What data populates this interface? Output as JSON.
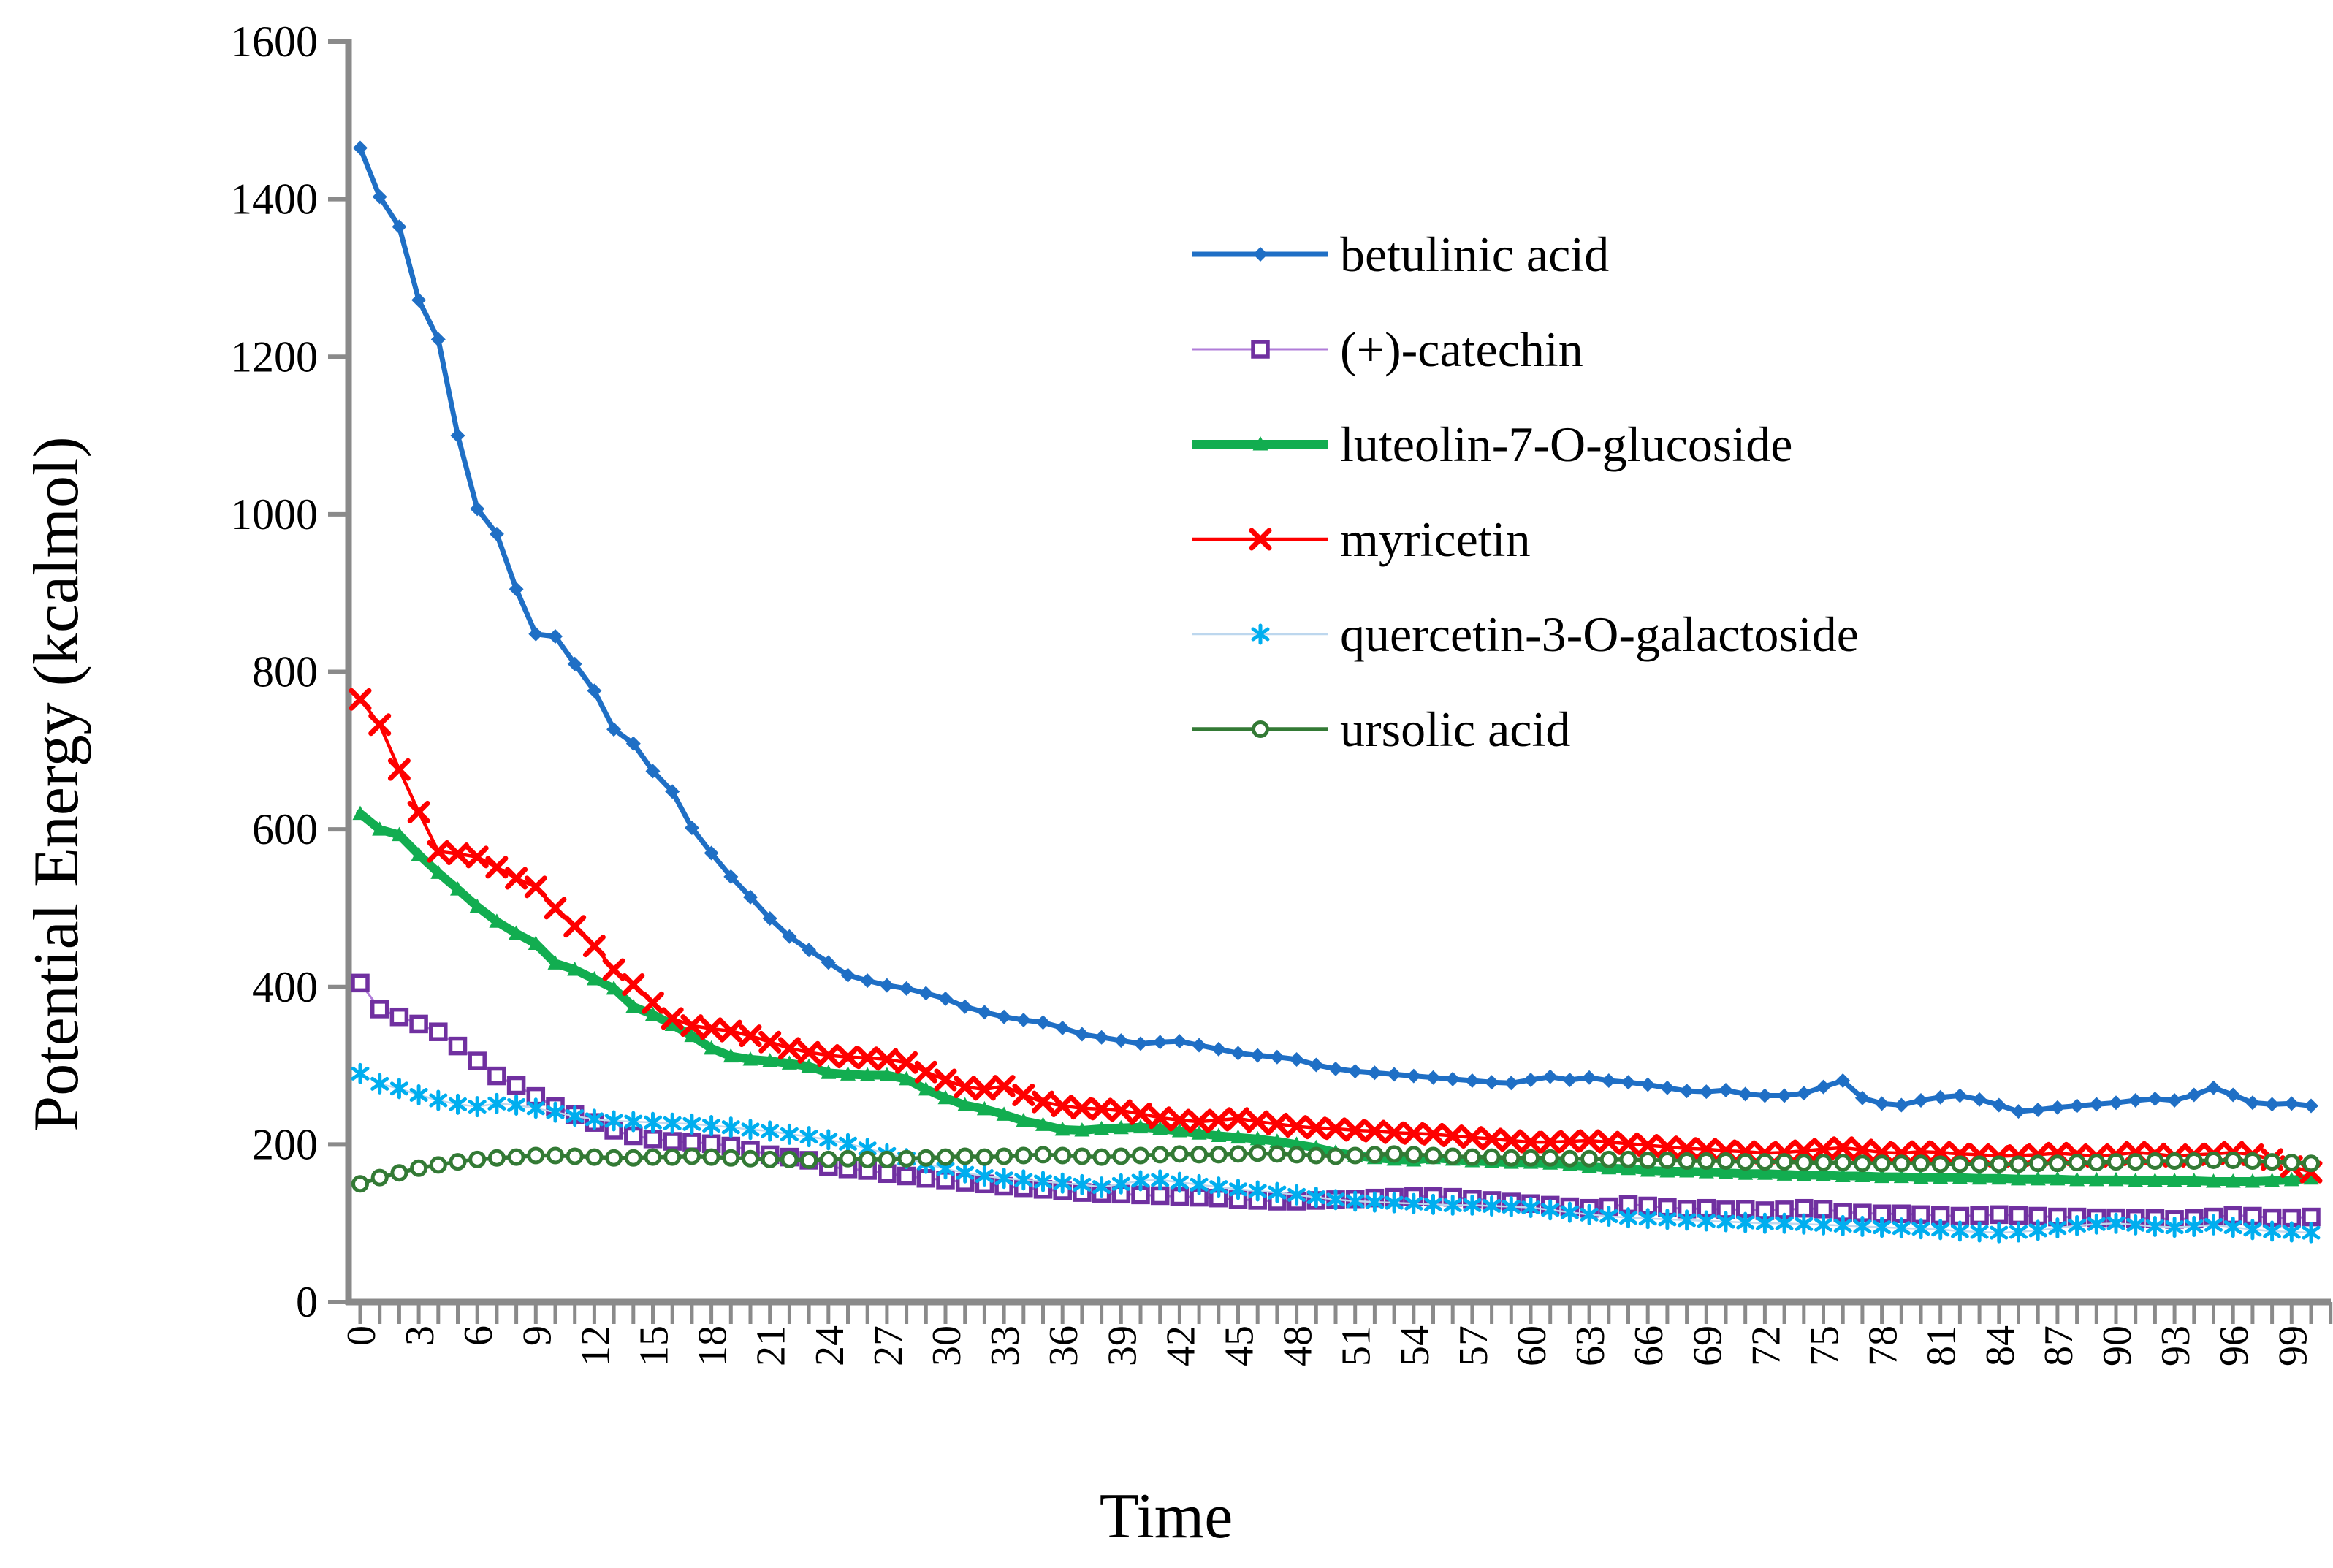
{
  "figure": {
    "xlabel": "Time",
    "ylabel": "Potential Energy (kcalmol)",
    "axis_color": "#8A8A8A",
    "text_color": "#000000",
    "background": "#FFFFFF",
    "yticks": [
      0,
      200,
      400,
      600,
      800,
      1000,
      1200,
      1400,
      1600
    ],
    "xtick_labels": [
      0,
      3,
      6,
      9,
      12,
      15,
      18,
      21,
      24,
      27,
      30,
      33,
      36,
      39,
      42,
      45,
      48,
      51,
      54,
      57,
      60,
      63,
      66,
      69,
      72,
      75,
      78,
      81,
      84,
      87,
      90,
      93,
      96,
      99
    ],
    "legend_position": "upper-right-inside",
    "grid": false
  },
  "chart_data": {
    "type": "line",
    "title": "",
    "xlabel": "Time",
    "ylabel": "Potential Energy (kcalmol)",
    "xlim": [
      0,
      101
    ],
    "ylim": [
      0,
      1600
    ],
    "x_step": 1,
    "series": [
      {
        "name": "betulinic acid",
        "line_color": "#1F6FC5",
        "marker_color": "#1F6FC5",
        "marker": "diamond",
        "line_width": 7,
        "values": [
          1465,
          1403,
          1365,
          1272,
          1222,
          1100,
          1007,
          975,
          905,
          848,
          845,
          810,
          776,
          727,
          709,
          674,
          648,
          602,
          570,
          540,
          514,
          487,
          464,
          447,
          431,
          415,
          408,
          402,
          398,
          392,
          385,
          375,
          368,
          362,
          358,
          355,
          348,
          340,
          336,
          332,
          328,
          330,
          331,
          326,
          321,
          316,
          313,
          311,
          308,
          301,
          296,
          293,
          291,
          289,
          287,
          285,
          283,
          281,
          279,
          278,
          282,
          286,
          282,
          285,
          281,
          279,
          276,
          272,
          268,
          267,
          269,
          264,
          262,
          262,
          265,
          273,
          281,
          259,
          252,
          250,
          256,
          260,
          262,
          257,
          250,
          242,
          244,
          247,
          249,
          251,
          253,
          256,
          258,
          256,
          263,
          272,
          263,
          253,
          251,
          252,
          249
        ]
      },
      {
        "name": "(+)-catechin",
        "line_color": "#B07CD8",
        "marker_color": "#7030A0",
        "marker": "open-square",
        "line_width": 3,
        "values": [
          405,
          372,
          362,
          353,
          343,
          325,
          306,
          287,
          275,
          261,
          248,
          238,
          228,
          218,
          211,
          207,
          204,
          203,
          201,
          198,
          193,
          187,
          184,
          180,
          172,
          169,
          167,
          163,
          160,
          157,
          155,
          152,
          150,
          147,
          145,
          143,
          141,
          139,
          138,
          137,
          136,
          135,
          134,
          133,
          132,
          130,
          129,
          128,
          128,
          129,
          130,
          131,
          132,
          133,
          134,
          134,
          133,
          131,
          129,
          127,
          125,
          123,
          121,
          119,
          121,
          124,
          122,
          120,
          118,
          119,
          117,
          118,
          116,
          117,
          119,
          118,
          114,
          113,
          112,
          112,
          111,
          110,
          109,
          110,
          111,
          110,
          109,
          108,
          108,
          107,
          107,
          106,
          106,
          105,
          106,
          108,
          110,
          109,
          107,
          107,
          108
        ]
      },
      {
        "name": "luteolin-7-O-glucoside",
        "line_color": "#12AD50",
        "marker_color": "#12AD50",
        "marker": "triangle",
        "line_width": 12,
        "values": [
          620,
          600,
          593,
          568,
          545,
          524,
          502,
          483,
          468,
          455,
          430,
          422,
          410,
          398,
          375,
          365,
          352,
          338,
          322,
          312,
          308,
          306,
          303,
          299,
          291,
          289,
          288,
          288,
          283,
          270,
          259,
          250,
          245,
          238,
          230,
          225,
          219,
          218,
          220,
          221,
          222,
          220,
          217,
          214,
          211,
          209,
          207,
          204,
          200,
          196,
          190,
          186,
          183,
          181,
          180,
          183,
          181,
          179,
          178,
          177,
          177,
          176,
          174,
          172,
          170,
          169,
          167,
          166,
          166,
          165,
          164,
          163,
          163,
          162,
          161,
          161,
          160,
          160,
          159,
          159,
          158,
          158,
          158,
          157,
          157,
          156,
          156,
          156,
          155,
          155,
          155,
          154,
          154,
          154,
          154,
          153,
          153,
          153,
          154,
          155,
          157
        ]
      },
      {
        "name": "myricetin",
        "line_color": "#FE0000",
        "marker_color": "#FE0000",
        "marker": "x",
        "line_width": 4.5,
        "values": [
          765,
          733,
          676,
          622,
          572,
          569,
          565,
          552,
          538,
          527,
          500,
          477,
          452,
          422,
          403,
          380,
          360,
          351,
          347,
          344,
          338,
          330,
          322,
          317,
          313,
          311,
          310,
          308,
          304,
          292,
          282,
          273,
          270,
          274,
          263,
          254,
          249,
          246,
          245,
          243,
          239,
          234,
          231,
          229,
          231,
          233,
          229,
          226,
          223,
          221,
          220,
          218,
          217,
          215,
          214,
          213,
          211,
          209,
          207,
          205,
          203,
          203,
          204,
          205,
          203,
          201,
          199,
          197,
          195,
          194,
          192,
          191,
          189,
          190,
          192,
          194,
          196,
          193,
          190,
          189,
          191,
          190,
          188,
          187,
          185,
          186,
          187,
          189,
          187,
          185,
          187,
          190,
          188,
          185,
          187,
          188,
          190,
          187,
          181,
          172,
          165
        ]
      },
      {
        "name": "quercetin-3-O-galactoside",
        "line_color": "#BDD7EE",
        "marker_color": "#00AEEF",
        "marker": "star",
        "line_width": 2.5,
        "values": [
          290,
          277,
          271,
          263,
          256,
          251,
          248,
          252,
          250,
          246,
          241,
          236,
          232,
          230,
          229,
          228,
          227,
          226,
          224,
          222,
          219,
          217,
          213,
          210,
          206,
          201,
          195,
          188,
          182,
          176,
          169,
          164,
          160,
          157,
          155,
          153,
          151,
          149,
          146,
          150,
          154,
          155,
          152,
          149,
          146,
          143,
          141,
          139,
          136,
          133,
          130,
          128,
          127,
          126,
          125,
          124,
          123,
          123,
          122,
          121,
          120,
          117,
          114,
          111,
          109,
          107,
          106,
          105,
          104,
          103,
          102,
          101,
          100,
          100,
          99,
          98,
          97,
          96,
          95,
          94,
          93,
          92,
          90,
          89,
          88,
          89,
          91,
          94,
          97,
          99,
          100,
          98,
          96,
          95,
          96,
          98,
          95,
          92,
          90,
          89,
          88
        ]
      },
      {
        "name": "ursolic acid",
        "line_color": "#337A35",
        "marker_color": "#337A35",
        "marker": "open-circle",
        "line_width": 5.5,
        "values": [
          150,
          158,
          164,
          170,
          174,
          178,
          181,
          183,
          184,
          186,
          186,
          185,
          184,
          183,
          183,
          184,
          184,
          185,
          184,
          183,
          182,
          181,
          181,
          180,
          181,
          182,
          181,
          181,
          182,
          183,
          184,
          185,
          184,
          185,
          186,
          187,
          186,
          185,
          184,
          185,
          186,
          187,
          188,
          187,
          187,
          188,
          189,
          188,
          187,
          186,
          185,
          186,
          187,
          188,
          187,
          186,
          185,
          184,
          184,
          183,
          183,
          183,
          182,
          182,
          181,
          181,
          180,
          180,
          179,
          179,
          179,
          178,
          178,
          178,
          177,
          177,
          177,
          176,
          176,
          176,
          176,
          175,
          175,
          175,
          175,
          175,
          176,
          176,
          177,
          177,
          178,
          178,
          179,
          179,
          179,
          180,
          180,
          179,
          178,
          177,
          176
        ]
      }
    ]
  }
}
